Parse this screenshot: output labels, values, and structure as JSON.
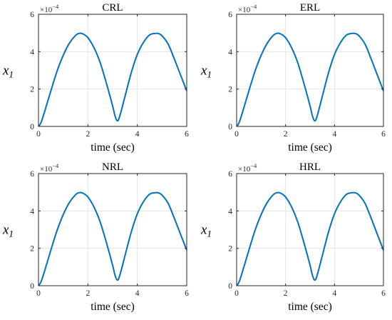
{
  "colors": {
    "line": "#0072BD",
    "grid": "#e6e6e6",
    "axes": "#262626"
  },
  "chart_data": [
    {
      "type": "line",
      "title": "CRL",
      "xlabel": "time (sec)",
      "ylabel": "x",
      "ylabel_subscript": "1",
      "y_multiplier": {
        "base": "×10",
        "exponent": "−4"
      },
      "xlim": [
        0,
        6
      ],
      "ylim": [
        0,
        6
      ],
      "xticks": [
        "0",
        "2",
        "4",
        "6"
      ],
      "yticks": [
        "0",
        "2",
        "4",
        "6"
      ],
      "grid": true,
      "series": [
        {
          "x": [
            0,
            0.1,
            0.25,
            0.5,
            0.75,
            1.0,
            1.25,
            1.5,
            1.65,
            1.8,
            2.0,
            2.25,
            2.5,
            2.75,
            3.0,
            3.1,
            3.2,
            3.3,
            3.5,
            3.75,
            4.0,
            4.25,
            4.5,
            4.75,
            4.85,
            5.0,
            5.25,
            5.5,
            5.75,
            6.0
          ],
          "y": [
            0.0,
            0.2,
            0.8,
            1.9,
            2.95,
            3.8,
            4.45,
            4.87,
            4.98,
            4.95,
            4.75,
            4.2,
            3.4,
            2.3,
            1.1,
            0.55,
            0.3,
            0.6,
            1.6,
            2.85,
            3.85,
            4.5,
            4.9,
            4.98,
            4.97,
            4.85,
            4.4,
            3.6,
            2.75,
            1.9
          ]
        }
      ]
    },
    {
      "type": "line",
      "title": "ERL",
      "xlabel": "time (sec)",
      "ylabel": "x",
      "ylabel_subscript": "1",
      "y_multiplier": {
        "base": "×10",
        "exponent": "−4"
      },
      "xlim": [
        0,
        6
      ],
      "ylim": [
        0,
        6
      ],
      "xticks": [
        "0",
        "2",
        "4",
        "6"
      ],
      "yticks": [
        "0",
        "2",
        "4",
        "6"
      ],
      "grid": true,
      "series": [
        {
          "x": [
            0,
            0.1,
            0.25,
            0.5,
            0.75,
            1.0,
            1.25,
            1.5,
            1.65,
            1.8,
            2.0,
            2.25,
            2.5,
            2.75,
            3.0,
            3.1,
            3.2,
            3.3,
            3.5,
            3.75,
            4.0,
            4.25,
            4.5,
            4.75,
            4.85,
            5.0,
            5.25,
            5.5,
            5.75,
            6.0
          ],
          "y": [
            0.0,
            0.2,
            0.8,
            1.9,
            2.95,
            3.8,
            4.45,
            4.87,
            4.98,
            4.95,
            4.75,
            4.2,
            3.4,
            2.3,
            1.1,
            0.55,
            0.3,
            0.6,
            1.6,
            2.85,
            3.85,
            4.5,
            4.9,
            4.98,
            4.97,
            4.85,
            4.4,
            3.6,
            2.75,
            1.9
          ]
        }
      ]
    },
    {
      "type": "line",
      "title": "NRL",
      "xlabel": "time (sec)",
      "ylabel": "x",
      "ylabel_subscript": "1",
      "y_multiplier": {
        "base": "×10",
        "exponent": "−4"
      },
      "xlim": [
        0,
        6
      ],
      "ylim": [
        0,
        6
      ],
      "xticks": [
        "0",
        "2",
        "4",
        "6"
      ],
      "yticks": [
        "0",
        "2",
        "4",
        "6"
      ],
      "grid": true,
      "series": [
        {
          "x": [
            0,
            0.1,
            0.25,
            0.5,
            0.75,
            1.0,
            1.25,
            1.5,
            1.65,
            1.8,
            2.0,
            2.25,
            2.5,
            2.75,
            3.0,
            3.1,
            3.2,
            3.3,
            3.5,
            3.75,
            4.0,
            4.25,
            4.5,
            4.75,
            4.85,
            5.0,
            5.25,
            5.5,
            5.75,
            6.0
          ],
          "y": [
            0.0,
            0.2,
            0.8,
            1.9,
            2.95,
            3.8,
            4.45,
            4.87,
            4.98,
            4.95,
            4.75,
            4.2,
            3.4,
            2.3,
            1.1,
            0.55,
            0.3,
            0.6,
            1.6,
            2.85,
            3.85,
            4.5,
            4.9,
            4.98,
            4.97,
            4.85,
            4.4,
            3.6,
            2.75,
            1.9
          ]
        }
      ]
    },
    {
      "type": "line",
      "title": "HRL",
      "xlabel": "time (sec)",
      "ylabel": "x",
      "ylabel_subscript": "1",
      "y_multiplier": {
        "base": "×10",
        "exponent": "−4"
      },
      "xlim": [
        0,
        6
      ],
      "ylim": [
        0,
        6
      ],
      "xticks": [
        "0",
        "2",
        "4",
        "6"
      ],
      "yticks": [
        "0",
        "2",
        "4",
        "6"
      ],
      "grid": true,
      "series": [
        {
          "x": [
            0,
            0.1,
            0.25,
            0.5,
            0.75,
            1.0,
            1.25,
            1.5,
            1.65,
            1.8,
            2.0,
            2.25,
            2.5,
            2.75,
            3.0,
            3.1,
            3.2,
            3.3,
            3.5,
            3.75,
            4.0,
            4.25,
            4.5,
            4.75,
            4.85,
            5.0,
            5.25,
            5.5,
            5.75,
            6.0
          ],
          "y": [
            0.0,
            0.2,
            0.8,
            1.9,
            2.95,
            3.8,
            4.45,
            4.87,
            4.98,
            4.95,
            4.75,
            4.2,
            3.4,
            2.3,
            1.1,
            0.55,
            0.3,
            0.6,
            1.6,
            2.85,
            3.85,
            4.5,
            4.9,
            4.98,
            4.97,
            4.85,
            4.4,
            3.6,
            2.75,
            1.9
          ]
        }
      ]
    }
  ]
}
